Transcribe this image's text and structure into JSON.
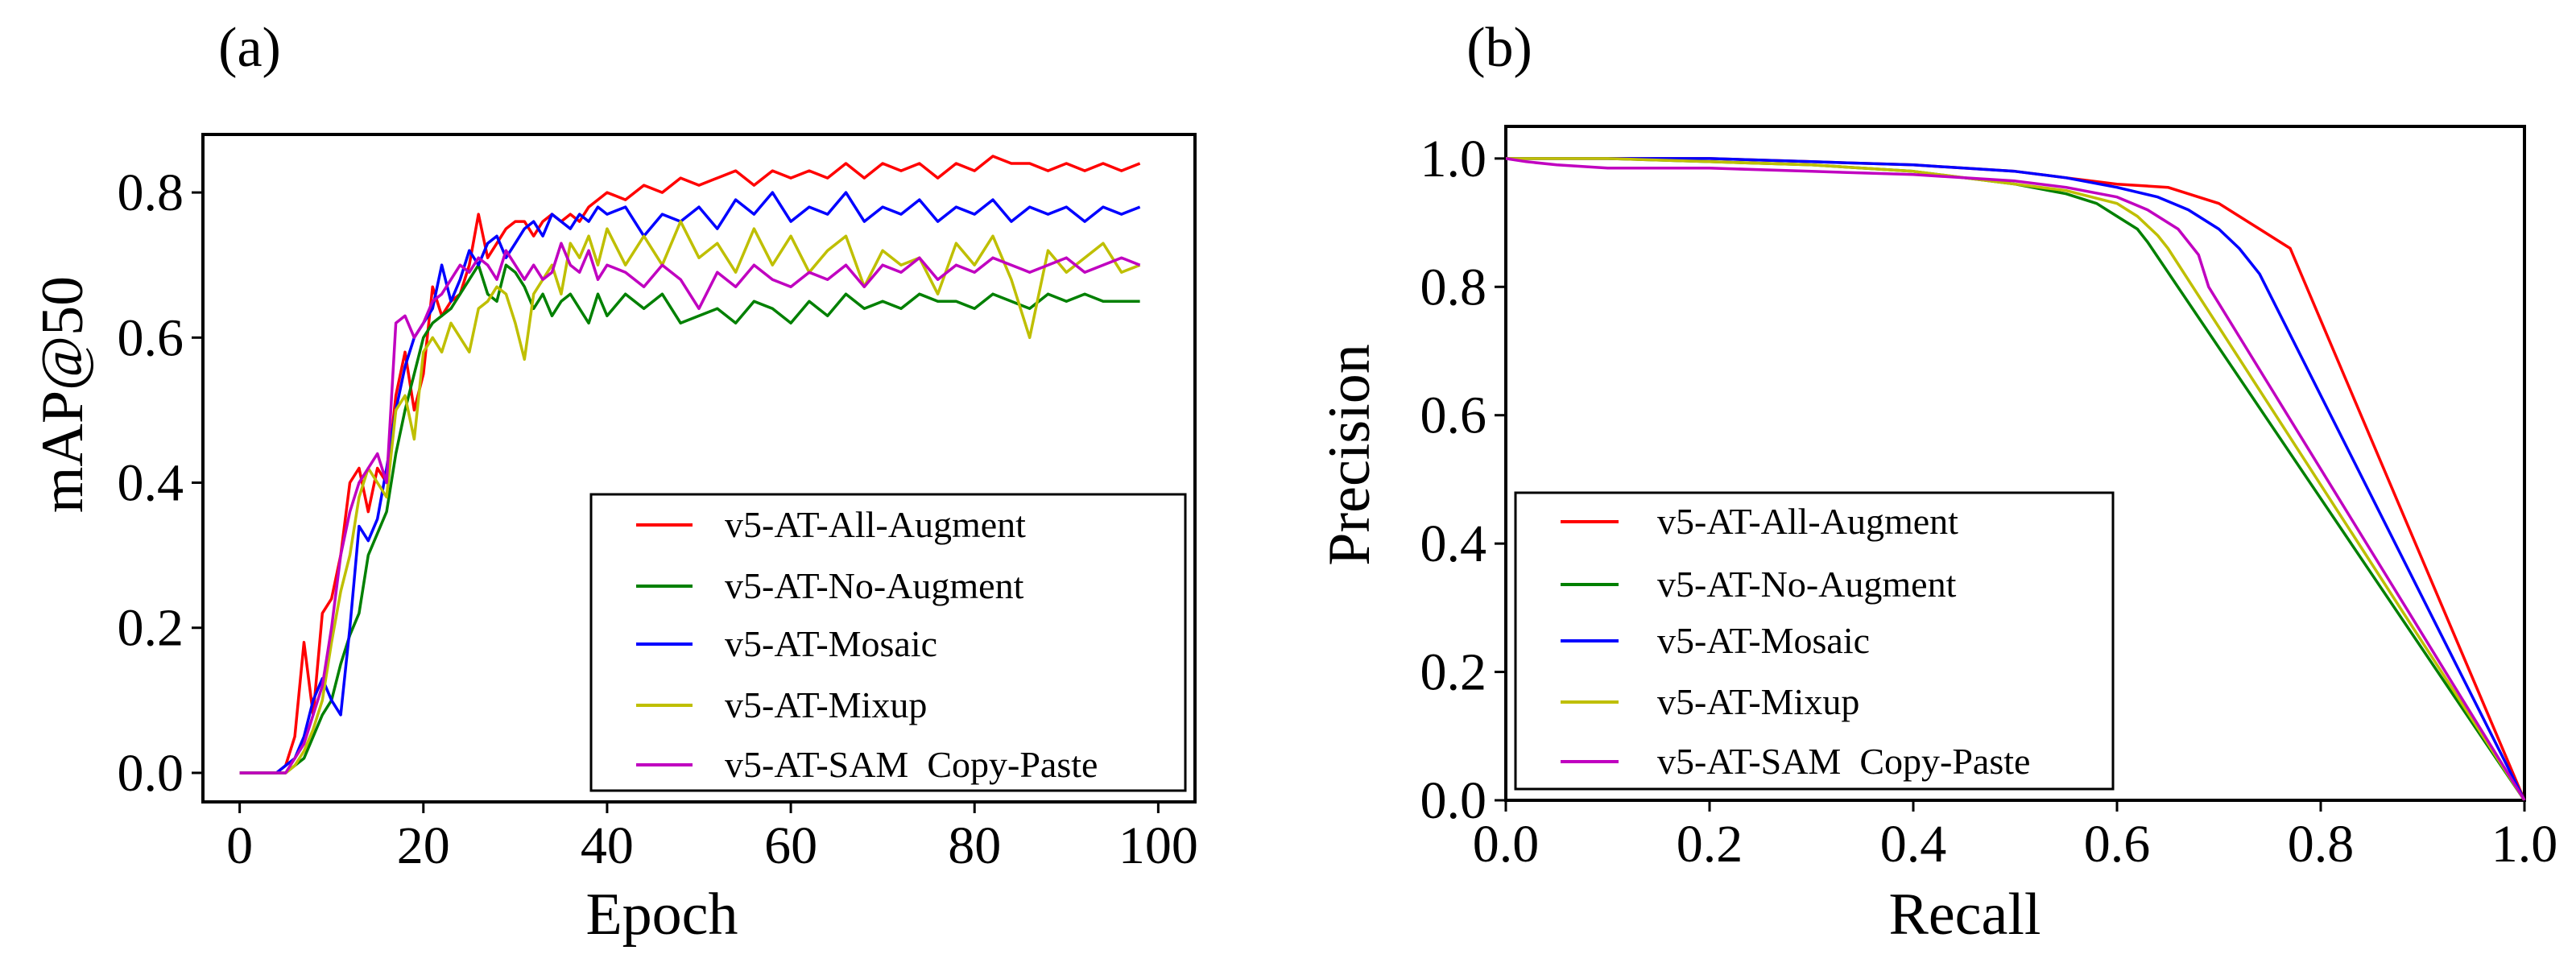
{
  "chart_data": [
    {
      "panel_label": "(a)",
      "type": "line",
      "xlabel": "Epoch",
      "ylabel": "mAP@50",
      "xlim": [
        -4,
        104
      ],
      "ylim": [
        -0.04,
        0.88
      ],
      "xticks": [
        0,
        20,
        40,
        60,
        80,
        100
      ],
      "yticks": [
        0.0,
        0.2,
        0.4,
        0.6,
        0.8
      ],
      "xtick_labels": [
        "0",
        "20",
        "40",
        "60",
        "80",
        "100"
      ],
      "ytick_labels": [
        "0.0",
        "0.2",
        "0.4",
        "0.6",
        "0.8"
      ],
      "legend_position": "lower-right",
      "series": [
        {
          "name": "v5-AT-All-Augment",
          "color": "#ff0000",
          "x": [
            0,
            2,
            4,
            5,
            6,
            7,
            8,
            9,
            10,
            11,
            12,
            13,
            14,
            15,
            16,
            17,
            18,
            19,
            20,
            21,
            22,
            23,
            24,
            25,
            26,
            27,
            28,
            29,
            30,
            31,
            32,
            33,
            34,
            35,
            36,
            37,
            38,
            39,
            40,
            42,
            44,
            46,
            48,
            50,
            52,
            54,
            56,
            58,
            60,
            62,
            64,
            66,
            68,
            70,
            72,
            74,
            76,
            78,
            80,
            82,
            84,
            86,
            88,
            90,
            92,
            94,
            96,
            98
          ],
          "y": [
            0.0,
            0.0,
            0.0,
            0.01,
            0.05,
            0.18,
            0.08,
            0.22,
            0.24,
            0.3,
            0.4,
            0.42,
            0.36,
            0.42,
            0.4,
            0.52,
            0.58,
            0.5,
            0.55,
            0.67,
            0.63,
            0.65,
            0.66,
            0.7,
            0.77,
            0.71,
            0.73,
            0.75,
            0.76,
            0.76,
            0.74,
            0.76,
            0.77,
            0.76,
            0.77,
            0.76,
            0.78,
            0.79,
            0.8,
            0.79,
            0.81,
            0.8,
            0.82,
            0.81,
            0.82,
            0.83,
            0.81,
            0.83,
            0.82,
            0.83,
            0.82,
            0.84,
            0.82,
            0.84,
            0.83,
            0.84,
            0.82,
            0.84,
            0.83,
            0.85,
            0.84,
            0.84,
            0.83,
            0.84,
            0.83,
            0.84,
            0.83,
            0.84
          ]
        },
        {
          "name": "v5-AT-No-Augment",
          "color": "#008000",
          "x": [
            0,
            2,
            4,
            5,
            6,
            7,
            8,
            9,
            10,
            11,
            12,
            13,
            14,
            15,
            16,
            17,
            18,
            19,
            20,
            21,
            22,
            23,
            24,
            25,
            26,
            27,
            28,
            29,
            30,
            31,
            32,
            33,
            34,
            35,
            36,
            37,
            38,
            39,
            40,
            42,
            44,
            46,
            48,
            50,
            52,
            54,
            56,
            58,
            60,
            62,
            64,
            66,
            68,
            70,
            72,
            74,
            76,
            78,
            80,
            82,
            84,
            86,
            88,
            90,
            92,
            94,
            96,
            98
          ],
          "y": [
            0.0,
            0.0,
            0.0,
            0.0,
            0.01,
            0.02,
            0.05,
            0.08,
            0.1,
            0.15,
            0.19,
            0.22,
            0.3,
            0.33,
            0.36,
            0.44,
            0.5,
            0.55,
            0.6,
            0.62,
            0.63,
            0.64,
            0.66,
            0.68,
            0.7,
            0.66,
            0.65,
            0.7,
            0.69,
            0.67,
            0.64,
            0.66,
            0.63,
            0.65,
            0.66,
            0.64,
            0.62,
            0.66,
            0.63,
            0.66,
            0.64,
            0.66,
            0.62,
            0.63,
            0.64,
            0.62,
            0.65,
            0.64,
            0.62,
            0.65,
            0.63,
            0.66,
            0.64,
            0.65,
            0.64,
            0.66,
            0.65,
            0.65,
            0.64,
            0.66,
            0.65,
            0.64,
            0.66,
            0.65,
            0.66,
            0.65,
            0.65,
            0.65
          ]
        },
        {
          "name": "v5-AT-Mosaic",
          "color": "#0000ff",
          "x": [
            0,
            2,
            4,
            5,
            6,
            7,
            8,
            9,
            10,
            11,
            12,
            13,
            14,
            15,
            16,
            17,
            18,
            19,
            20,
            21,
            22,
            23,
            24,
            25,
            26,
            27,
            28,
            29,
            30,
            31,
            32,
            33,
            34,
            35,
            36,
            37,
            38,
            39,
            40,
            42,
            44,
            46,
            48,
            50,
            52,
            54,
            56,
            58,
            60,
            62,
            64,
            66,
            68,
            70,
            72,
            74,
            76,
            78,
            80,
            82,
            84,
            86,
            88,
            90,
            92,
            94,
            96,
            98
          ],
          "y": [
            0.0,
            0.0,
            0.0,
            0.01,
            0.02,
            0.05,
            0.1,
            0.13,
            0.1,
            0.08,
            0.2,
            0.34,
            0.32,
            0.35,
            0.42,
            0.5,
            0.56,
            0.6,
            0.62,
            0.64,
            0.7,
            0.65,
            0.68,
            0.72,
            0.7,
            0.73,
            0.74,
            0.71,
            0.73,
            0.75,
            0.76,
            0.74,
            0.77,
            0.76,
            0.75,
            0.77,
            0.76,
            0.78,
            0.77,
            0.78,
            0.74,
            0.77,
            0.76,
            0.78,
            0.75,
            0.79,
            0.77,
            0.8,
            0.76,
            0.78,
            0.77,
            0.8,
            0.76,
            0.78,
            0.77,
            0.79,
            0.76,
            0.78,
            0.77,
            0.79,
            0.76,
            0.78,
            0.77,
            0.78,
            0.76,
            0.78,
            0.77,
            0.78
          ]
        },
        {
          "name": "v5-AT-Mixup",
          "color": "#bfbf00",
          "x": [
            0,
            2,
            4,
            5,
            6,
            7,
            8,
            9,
            10,
            11,
            12,
            13,
            14,
            15,
            16,
            17,
            18,
            19,
            20,
            21,
            22,
            23,
            24,
            25,
            26,
            27,
            28,
            29,
            30,
            31,
            32,
            33,
            34,
            35,
            36,
            37,
            38,
            39,
            40,
            42,
            44,
            46,
            48,
            50,
            52,
            54,
            56,
            58,
            60,
            62,
            64,
            66,
            68,
            70,
            72,
            74,
            76,
            78,
            80,
            82,
            84,
            86,
            88,
            90,
            92,
            94,
            96,
            98
          ],
          "y": [
            0.0,
            0.0,
            0.0,
            0.0,
            0.01,
            0.03,
            0.06,
            0.1,
            0.18,
            0.25,
            0.3,
            0.38,
            0.42,
            0.4,
            0.38,
            0.5,
            0.52,
            0.46,
            0.58,
            0.6,
            0.58,
            0.62,
            0.6,
            0.58,
            0.64,
            0.65,
            0.67,
            0.66,
            0.62,
            0.57,
            0.66,
            0.68,
            0.7,
            0.66,
            0.73,
            0.71,
            0.74,
            0.7,
            0.75,
            0.7,
            0.74,
            0.7,
            0.76,
            0.71,
            0.73,
            0.69,
            0.75,
            0.7,
            0.74,
            0.69,
            0.72,
            0.74,
            0.67,
            0.72,
            0.7,
            0.71,
            0.66,
            0.73,
            0.7,
            0.74,
            0.68,
            0.6,
            0.72,
            0.69,
            0.71,
            0.73,
            0.69,
            0.7
          ]
        },
        {
          "name": "v5-AT-SAM  Copy-Paste",
          "color": "#c000c0",
          "x": [
            0,
            2,
            4,
            5,
            6,
            7,
            8,
            9,
            10,
            11,
            12,
            13,
            14,
            15,
            16,
            17,
            18,
            19,
            20,
            21,
            22,
            23,
            24,
            25,
            26,
            27,
            28,
            29,
            30,
            31,
            32,
            33,
            34,
            35,
            36,
            37,
            38,
            39,
            40,
            42,
            44,
            46,
            48,
            50,
            52,
            54,
            56,
            58,
            60,
            62,
            64,
            66,
            68,
            70,
            72,
            74,
            76,
            78,
            80,
            82,
            84,
            86,
            88,
            90,
            92,
            94,
            96,
            98
          ],
          "y": [
            0.0,
            0.0,
            0.0,
            0.0,
            0.02,
            0.04,
            0.08,
            0.12,
            0.2,
            0.3,
            0.36,
            0.4,
            0.42,
            0.44,
            0.4,
            0.62,
            0.63,
            0.6,
            0.62,
            0.65,
            0.66,
            0.68,
            0.7,
            0.69,
            0.71,
            0.7,
            0.68,
            0.72,
            0.7,
            0.68,
            0.7,
            0.68,
            0.69,
            0.73,
            0.7,
            0.69,
            0.72,
            0.68,
            0.7,
            0.69,
            0.67,
            0.7,
            0.68,
            0.64,
            0.69,
            0.67,
            0.7,
            0.68,
            0.67,
            0.69,
            0.68,
            0.7,
            0.67,
            0.7,
            0.69,
            0.71,
            0.68,
            0.7,
            0.69,
            0.71,
            0.7,
            0.69,
            0.7,
            0.71,
            0.69,
            0.7,
            0.71,
            0.7
          ]
        }
      ]
    },
    {
      "panel_label": "(b)",
      "type": "line",
      "xlabel": "Recall",
      "ylabel": "Precision",
      "xlim": [
        0.0,
        1.0
      ],
      "ylim": [
        0.0,
        1.05
      ],
      "xticks": [
        0.0,
        0.2,
        0.4,
        0.6,
        0.8,
        1.0
      ],
      "yticks": [
        0.0,
        0.2,
        0.4,
        0.6,
        0.8,
        1.0
      ],
      "xtick_labels": [
        "0.0",
        "0.2",
        "0.4",
        "0.6",
        "0.8",
        "1.0"
      ],
      "ytick_labels": [
        "0.0",
        "0.2",
        "0.4",
        "0.6",
        "0.8",
        "1.0"
      ],
      "legend_position": "lower-left",
      "series": [
        {
          "name": "v5-AT-All-Augment",
          "color": "#ff0000",
          "x": [
            0.0,
            0.1,
            0.2,
            0.3,
            0.4,
            0.5,
            0.55,
            0.6,
            0.65,
            0.68,
            0.7,
            0.72,
            0.74,
            0.76,
            0.77,
            1.0
          ],
          "y": [
            1.0,
            1.0,
            1.0,
            0.995,
            0.99,
            0.98,
            0.97,
            0.96,
            0.955,
            0.94,
            0.93,
            0.91,
            0.89,
            0.87,
            0.86,
            0.0
          ]
        },
        {
          "name": "v5-AT-No-Augment",
          "color": "#008000",
          "x": [
            0.0,
            0.1,
            0.2,
            0.3,
            0.4,
            0.45,
            0.5,
            0.55,
            0.58,
            0.6,
            0.62,
            0.63,
            1.0
          ],
          "y": [
            1.0,
            1.0,
            0.995,
            0.99,
            0.98,
            0.97,
            0.96,
            0.945,
            0.93,
            0.91,
            0.89,
            0.87,
            0.0
          ]
        },
        {
          "name": "v5-AT-Mosaic",
          "color": "#0000ff",
          "x": [
            0.0,
            0.1,
            0.2,
            0.3,
            0.4,
            0.5,
            0.55,
            0.6,
            0.64,
            0.67,
            0.7,
            0.72,
            0.74,
            1.0
          ],
          "y": [
            1.0,
            1.0,
            1.0,
            0.995,
            0.99,
            0.98,
            0.97,
            0.955,
            0.94,
            0.92,
            0.89,
            0.86,
            0.82,
            0.0
          ]
        },
        {
          "name": "v5-AT-Mixup",
          "color": "#bfbf00",
          "x": [
            0.0,
            0.1,
            0.2,
            0.3,
            0.4,
            0.5,
            0.55,
            0.6,
            0.62,
            0.64,
            0.65,
            1.0
          ],
          "y": [
            1.0,
            1.0,
            0.995,
            0.99,
            0.98,
            0.96,
            0.95,
            0.93,
            0.91,
            0.88,
            0.86,
            0.0
          ]
        },
        {
          "name": "v5-AT-SAM  Copy-Paste",
          "color": "#c000c0",
          "x": [
            0.0,
            0.02,
            0.05,
            0.1,
            0.2,
            0.3,
            0.4,
            0.5,
            0.55,
            0.6,
            0.63,
            0.66,
            0.68,
            0.69,
            1.0
          ],
          "y": [
            1.0,
            0.995,
            0.99,
            0.985,
            0.985,
            0.98,
            0.975,
            0.965,
            0.955,
            0.94,
            0.92,
            0.89,
            0.85,
            0.8,
            0.0
          ]
        }
      ]
    }
  ]
}
